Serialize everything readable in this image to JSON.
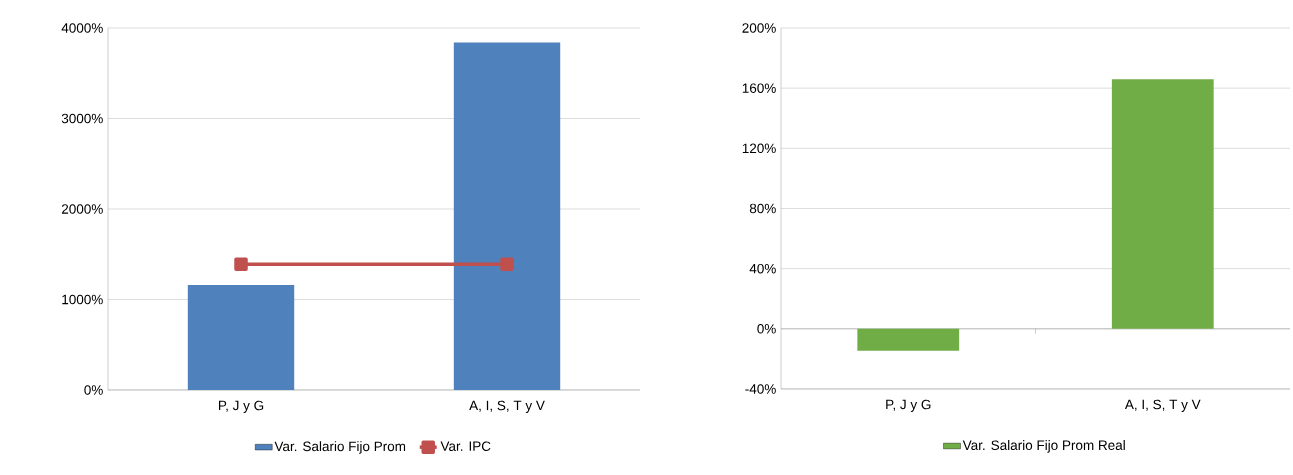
{
  "chart_data": [
    {
      "type": "bar",
      "categories": [
        "P, J y G",
        "A, I, S, T y V"
      ],
      "series": [
        {
          "name": "Var. Salario Fijo Prom",
          "color": "#4f81bd",
          "values": [
            1160,
            3840
          ]
        },
        {
          "name": "Var. IPC",
          "type": "line",
          "color": "#c0504d",
          "values": [
            1390,
            1390
          ]
        }
      ],
      "ylim": [
        0,
        4000
      ],
      "yticks": [
        {
          "value": 0,
          "label": "0%"
        },
        {
          "value": 1000,
          "label": "1000%"
        },
        {
          "value": 2000,
          "label": "2000%"
        },
        {
          "value": 3000,
          "label": "3000%"
        },
        {
          "value": 4000,
          "label": "4000%"
        }
      ],
      "grid": "y",
      "legend": "bottom",
      "marker": "square"
    },
    {
      "type": "bar",
      "categories": [
        "P, J y G",
        "A, I, S, T y V"
      ],
      "series": [
        {
          "name": "Var. Salario Fijo Prom Real",
          "color": "#70ad47",
          "values": [
            -14.5,
            166
          ]
        }
      ],
      "ylim": [
        -40,
        200
      ],
      "yticks": [
        {
          "value": -40,
          "label": "-40%"
        },
        {
          "value": 0,
          "label": "0%"
        },
        {
          "value": 40,
          "label": "40%"
        },
        {
          "value": 80,
          "label": "80%"
        },
        {
          "value": 120,
          "label": "120%"
        },
        {
          "value": 160,
          "label": "160%"
        },
        {
          "value": 200,
          "label": "200%"
        }
      ],
      "grid": "y",
      "legend": "bottom"
    }
  ]
}
